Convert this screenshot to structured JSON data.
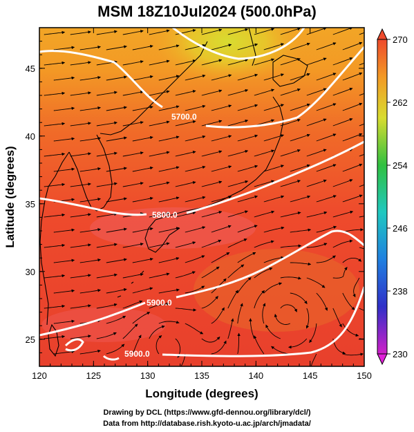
{
  "title": "MSM 18Z10Jul2024 (500.0hPa)",
  "x_axis": {
    "label": "Longitude (degrees)",
    "ticks": [
      "120",
      "125",
      "130",
      "135",
      "140",
      "145",
      "150"
    ],
    "range": [
      120,
      150
    ]
  },
  "y_axis": {
    "label": "Latitude  (degrees)",
    "ticks": [
      "25",
      "30",
      "35",
      "40",
      "45"
    ],
    "range": [
      23,
      48
    ]
  },
  "colorbar": {
    "ticks": [
      "270",
      "262",
      "254",
      "246",
      "238",
      "230"
    ],
    "range": [
      230,
      270
    ]
  },
  "contours": [
    {
      "label": "5700.0"
    },
    {
      "label": "5800.0"
    },
    {
      "label": "5900.0"
    },
    {
      "label": "5900.0"
    }
  ],
  "credits": {
    "line1": "Drawing by DCL (https://www.gfd-dennou.org/library/dcl/)",
    "line2": "Data from http://database.rish.kyoto-u.ac.jp/arch/jmadata/"
  },
  "colors": {
    "background_field": "#e8482c",
    "warm": "#f4462a",
    "cool": "#f8a020",
    "contour": "#ffffff"
  }
}
